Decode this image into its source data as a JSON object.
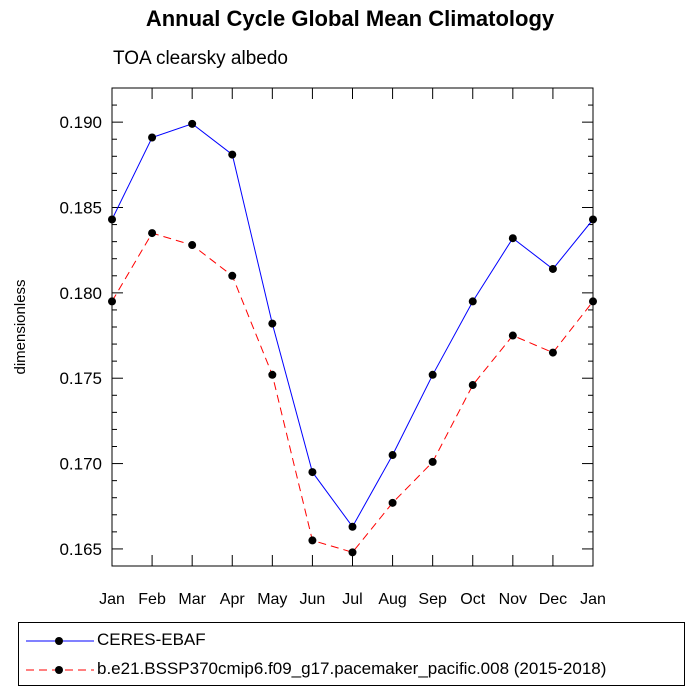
{
  "chart_data": {
    "type": "line",
    "title": "Annual Cycle Global Mean Climatology",
    "subtitle": "TOA clearsky albedo",
    "xlabel": "",
    "ylabel": "dimensionless",
    "categories": [
      "Jan",
      "Feb",
      "Mar",
      "Apr",
      "May",
      "Jun",
      "Jul",
      "Aug",
      "Sep",
      "Oct",
      "Nov",
      "Dec",
      "Jan"
    ],
    "ylim": [
      0.164,
      0.192
    ],
    "yticks": [
      0.165,
      0.17,
      0.175,
      0.18,
      0.185,
      0.19
    ],
    "ytick_labels": [
      "0.165",
      "0.170",
      "0.175",
      "0.180",
      "0.185",
      "0.190"
    ],
    "grid": false,
    "legend_position": "bottom",
    "series": [
      {
        "name": "CERES-EBAF",
        "color": "#0000ff",
        "dash": "solid",
        "values": [
          0.1843,
          0.1891,
          0.1899,
          0.1881,
          0.1782,
          0.1695,
          0.1663,
          0.1705,
          0.1752,
          0.1795,
          0.1832,
          0.1814,
          0.1843
        ]
      },
      {
        "name": "b.e21.BSSP370cmip6.f09_g17.pacemaker_pacific.008 (2015-2018)",
        "color": "#ff0000",
        "dash": "dashed",
        "values": [
          0.1795,
          0.1835,
          0.1828,
          0.181,
          0.1752,
          0.1655,
          0.1648,
          0.1677,
          0.1701,
          0.1746,
          0.1775,
          0.1765,
          0.1795
        ]
      }
    ]
  }
}
